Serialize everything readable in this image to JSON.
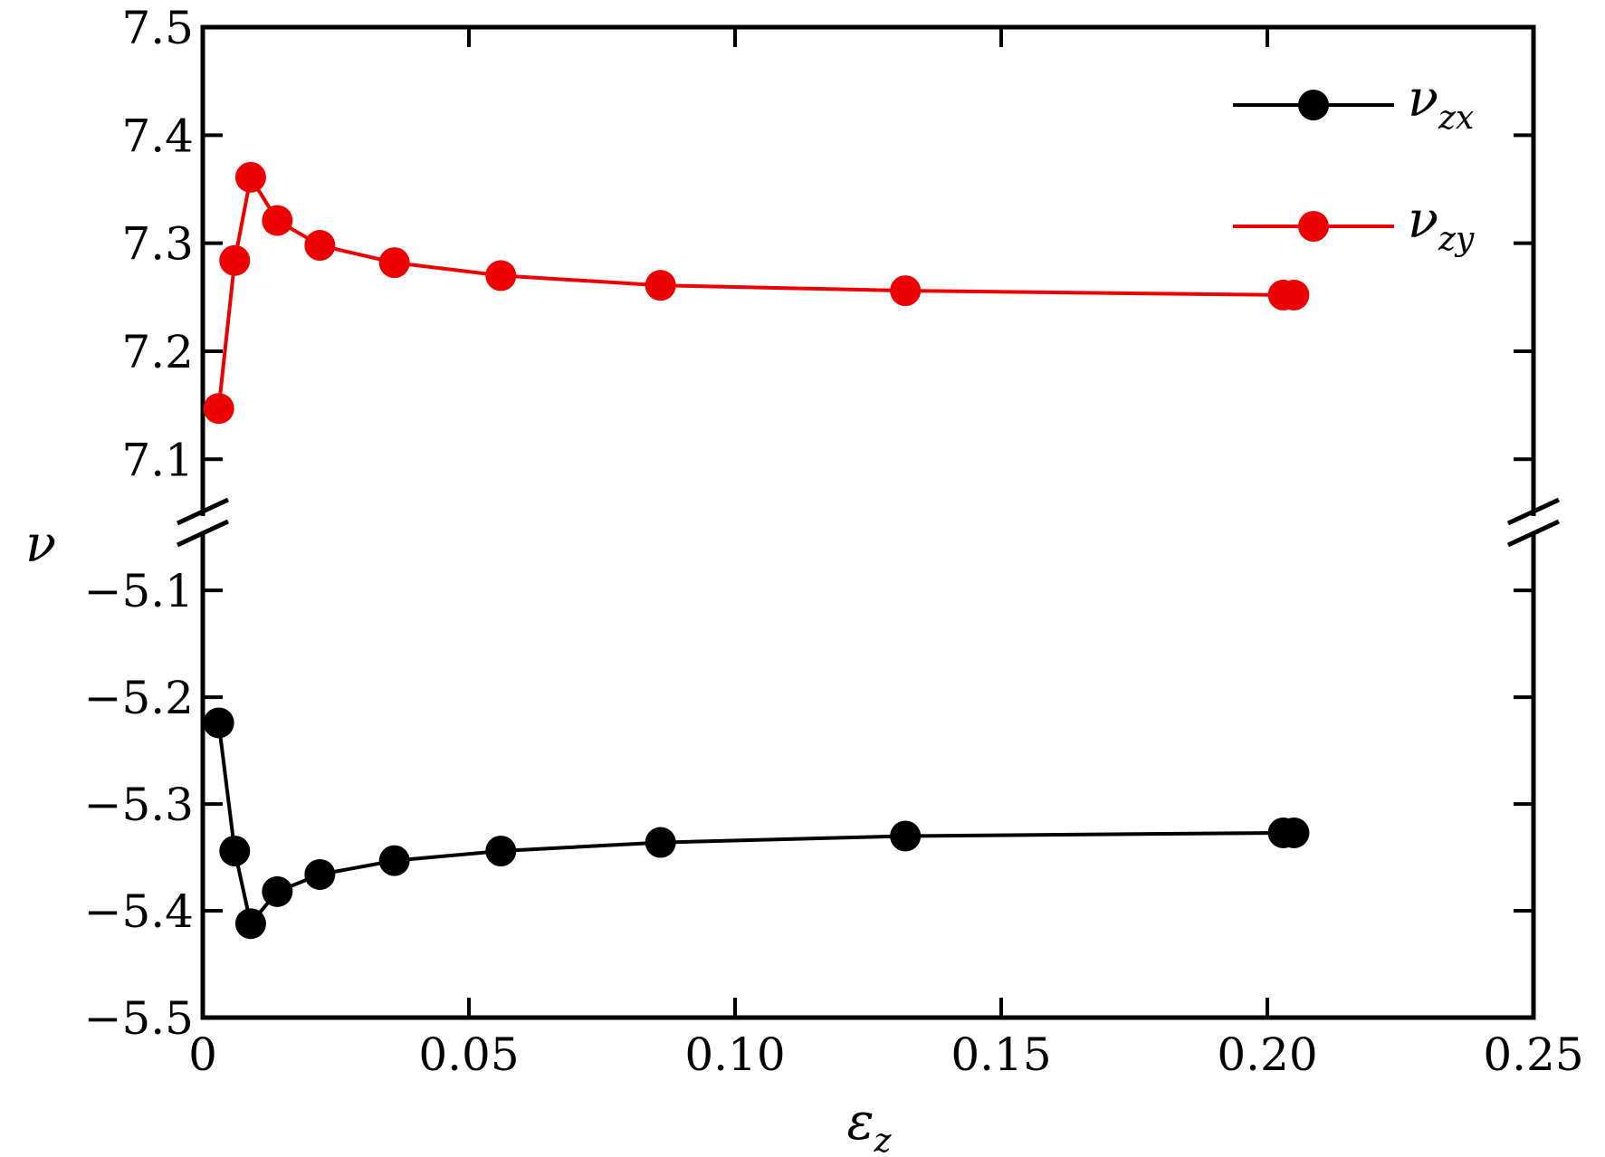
{
  "chart_data": {
    "type": "line",
    "xlabel": {
      "main": "ε",
      "sub": "z"
    },
    "ylabel": "ν",
    "xlim": [
      0,
      0.25
    ],
    "x_ticks": [
      {
        "value": 0,
        "label": "0"
      },
      {
        "value": 0.05,
        "label": "0.05"
      },
      {
        "value": 0.1,
        "label": "0.10"
      },
      {
        "value": 0.15,
        "label": "0.15"
      },
      {
        "value": 0.2,
        "label": "0.20"
      },
      {
        "value": 0.25,
        "label": "0.25"
      }
    ],
    "y_broken_axis": true,
    "y_upper": {
      "ylim": [
        7.06,
        7.5
      ],
      "ticks": [
        {
          "value": 7.1,
          "label": "7.1"
        },
        {
          "value": 7.2,
          "label": "7.2"
        },
        {
          "value": 7.3,
          "label": "7.3"
        },
        {
          "value": 7.4,
          "label": "7.4"
        },
        {
          "value": 7.5,
          "label": "7.5"
        }
      ]
    },
    "y_lower": {
      "ylim": [
        -5.5,
        -5.06
      ],
      "ticks": [
        {
          "value": -5.5,
          "label": "−5.5"
        },
        {
          "value": -5.4,
          "label": "−5.4"
        },
        {
          "value": -5.3,
          "label": "−5.3"
        },
        {
          "value": -5.2,
          "label": "−5.2"
        },
        {
          "value": -5.1,
          "label": "−5.1"
        }
      ]
    },
    "legend_position": "top-right",
    "series": [
      {
        "name": "ν",
        "name_sub": "zx",
        "color": "#000000",
        "segment": "lower",
        "x": [
          0.003,
          0.006,
          0.009,
          0.014,
          0.022,
          0.036,
          0.056,
          0.086,
          0.132,
          0.203,
          0.205
        ],
        "y": [
          -5.224,
          -5.344,
          -5.412,
          -5.382,
          -5.366,
          -5.353,
          -5.344,
          -5.336,
          -5.33,
          -5.327,
          -5.327
        ]
      },
      {
        "name": "ν",
        "name_sub": "zy",
        "color": "#ee0000",
        "segment": "upper",
        "x": [
          0.003,
          0.006,
          0.009,
          0.014,
          0.022,
          0.036,
          0.056,
          0.086,
          0.132,
          0.203,
          0.205
        ],
        "y": [
          7.147,
          7.284,
          7.361,
          7.321,
          7.298,
          7.282,
          7.27,
          7.261,
          7.256,
          7.252,
          7.252
        ]
      }
    ]
  }
}
